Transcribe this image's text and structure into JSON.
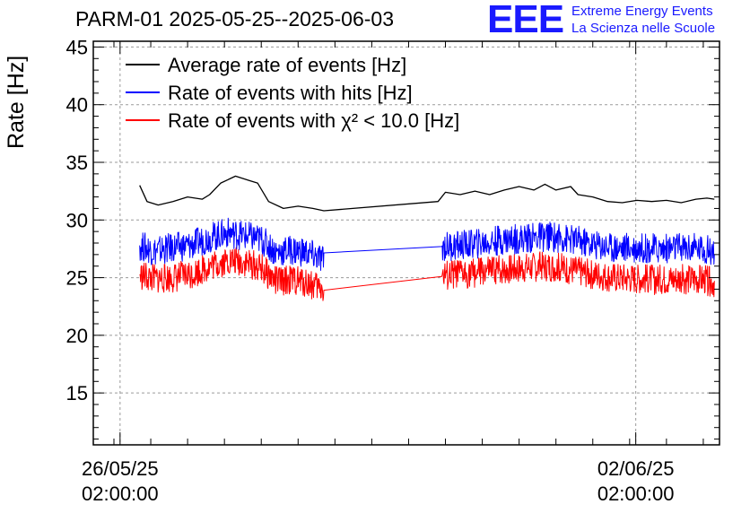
{
  "header": {
    "title": "PARM-01 2025-05-25--2025-06-03",
    "logo_text": "EEE",
    "logo_line1": "Extreme Energy Events",
    "logo_line2": "La Scienza nelle Scuole"
  },
  "chart_data": {
    "type": "line",
    "title": "PARM-01 2025-05-25--2025-06-03",
    "xlabel": "",
    "ylabel": "Rate [Hz]",
    "ylim": [
      10.5,
      45.5
    ],
    "yticks": [
      15,
      20,
      25,
      30,
      35,
      40,
      45
    ],
    "x_unit": "days since 2025-05-25 00:00:00",
    "xlim": [
      0.72,
      9.22
    ],
    "xticks": [
      {
        "x": 1.0833,
        "label_date": "26/05/25",
        "label_time": "02:00:00"
      },
      {
        "x": 8.0833,
        "label_date": "02/06/25",
        "label_time": "02:00:00"
      }
    ],
    "grid": true,
    "legend": {
      "placement": "top-left"
    },
    "series": [
      {
        "name": "Average rate of events [Hz]",
        "color": "#000000",
        "points": [
          [
            1.35,
            33.0
          ],
          [
            1.45,
            31.6
          ],
          [
            1.6,
            31.3
          ],
          [
            1.8,
            31.6
          ],
          [
            2.0,
            32.0
          ],
          [
            2.2,
            31.8
          ],
          [
            2.3,
            32.2
          ],
          [
            2.45,
            33.2
          ],
          [
            2.65,
            33.8
          ],
          [
            2.85,
            33.4
          ],
          [
            2.95,
            33.2
          ],
          [
            3.1,
            31.6
          ],
          [
            3.3,
            31.0
          ],
          [
            3.5,
            31.2
          ],
          [
            3.7,
            31.0
          ],
          [
            3.85,
            30.8
          ],
          [
            5.4,
            31.6
          ],
          [
            5.5,
            32.4
          ],
          [
            5.7,
            32.2
          ],
          [
            5.9,
            32.5
          ],
          [
            6.1,
            32.2
          ],
          [
            6.3,
            32.6
          ],
          [
            6.5,
            32.9
          ],
          [
            6.7,
            32.6
          ],
          [
            6.85,
            33.1
          ],
          [
            7.0,
            32.6
          ],
          [
            7.2,
            32.9
          ],
          [
            7.3,
            32.2
          ],
          [
            7.5,
            32.0
          ],
          [
            7.7,
            31.6
          ],
          [
            7.9,
            31.5
          ],
          [
            8.1,
            31.7
          ],
          [
            8.3,
            31.6
          ],
          [
            8.5,
            31.7
          ],
          [
            8.7,
            31.5
          ],
          [
            8.9,
            31.8
          ],
          [
            9.05,
            31.9
          ],
          [
            9.15,
            31.8
          ]
        ]
      },
      {
        "name": "Rate of events with hits [Hz]",
        "color": "#0000ff",
        "points": [
          [
            1.35,
            27.8
          ],
          [
            1.55,
            27.3
          ],
          [
            1.8,
            27.6
          ],
          [
            2.05,
            27.8
          ],
          [
            2.3,
            28.5
          ],
          [
            2.55,
            28.9
          ],
          [
            2.8,
            28.6
          ],
          [
            3.0,
            28.3
          ],
          [
            3.2,
            27.2
          ],
          [
            3.4,
            27.4
          ],
          [
            3.6,
            27.2
          ],
          [
            3.85,
            26.5
          ],
          [
            5.45,
            27.7
          ],
          [
            5.7,
            27.8
          ],
          [
            6.0,
            28.0
          ],
          [
            6.3,
            28.3
          ],
          [
            6.6,
            28.4
          ],
          [
            6.9,
            28.6
          ],
          [
            7.2,
            28.3
          ],
          [
            7.5,
            27.9
          ],
          [
            7.8,
            27.6
          ],
          [
            8.1,
            27.6
          ],
          [
            8.4,
            27.5
          ],
          [
            8.7,
            27.6
          ],
          [
            9.0,
            27.5
          ],
          [
            9.15,
            27.3
          ]
        ]
      },
      {
        "name": "Rate of events with χ² < 10.0 [Hz]",
        "color": "#ff0000",
        "points": [
          [
            1.35,
            25.2
          ],
          [
            1.55,
            24.9
          ],
          [
            1.8,
            25.0
          ],
          [
            2.05,
            25.3
          ],
          [
            2.3,
            26.0
          ],
          [
            2.55,
            26.5
          ],
          [
            2.8,
            26.3
          ],
          [
            3.0,
            25.8
          ],
          [
            3.2,
            24.7
          ],
          [
            3.4,
            24.8
          ],
          [
            3.6,
            24.6
          ],
          [
            3.85,
            24.0
          ],
          [
            5.45,
            25.1
          ],
          [
            5.7,
            25.3
          ],
          [
            6.0,
            25.5
          ],
          [
            6.3,
            25.7
          ],
          [
            6.6,
            25.9
          ],
          [
            6.9,
            26.0
          ],
          [
            7.2,
            25.7
          ],
          [
            7.5,
            25.3
          ],
          [
            7.8,
            25.0
          ],
          [
            8.1,
            24.9
          ],
          [
            8.4,
            24.8
          ],
          [
            8.7,
            24.9
          ],
          [
            9.0,
            24.8
          ],
          [
            9.15,
            24.6
          ]
        ]
      }
    ]
  }
}
